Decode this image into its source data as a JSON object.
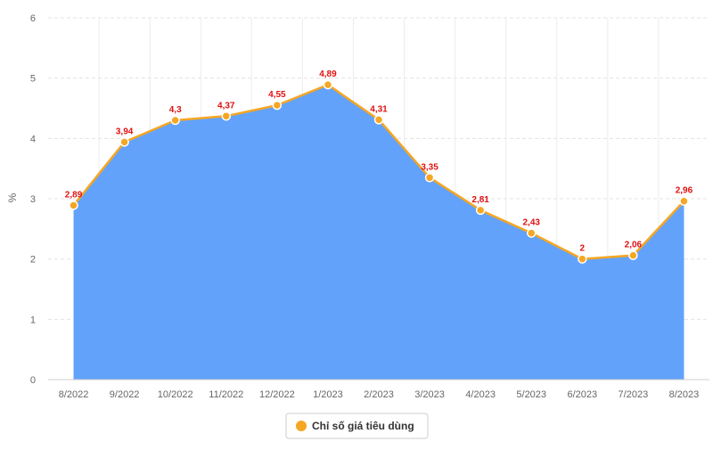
{
  "chart_data": {
    "type": "area",
    "categories": [
      "8/2022",
      "9/2022",
      "10/2022",
      "11/2022",
      "12/2022",
      "1/2023",
      "2/2023",
      "3/2023",
      "4/2023",
      "5/2023",
      "6/2023",
      "7/2023",
      "8/2023"
    ],
    "series": [
      {
        "name": "Chỉ số giá tiêu dùng",
        "values": [
          2.89,
          3.94,
          4.3,
          4.37,
          4.55,
          4.89,
          4.31,
          3.35,
          2.81,
          2.43,
          2,
          2.06,
          2.96
        ],
        "labels": [
          "2,89",
          "3,94",
          "4,3",
          "4,37",
          "4,55",
          "4,89",
          "4,31",
          "3,35",
          "2,81",
          "2,43",
          "2",
          "2,06",
          "2,96"
        ],
        "line_color": "#f5a623",
        "fill_color": "#62a2fb",
        "marker_color": "#f5a623"
      }
    ],
    "ylabel": "%",
    "ylim": [
      0,
      6
    ],
    "yticks": [
      0,
      1,
      2,
      3,
      4,
      5,
      6
    ],
    "grid": true,
    "legend_position": "bottom-center"
  }
}
